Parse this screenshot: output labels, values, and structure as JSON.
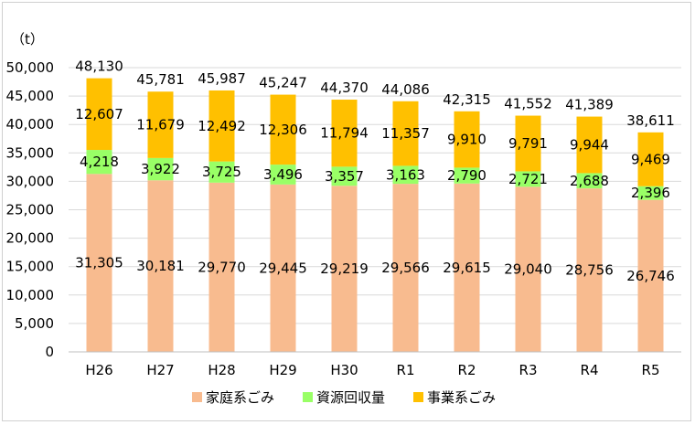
{
  "chart_data": {
    "type": "bar",
    "stacked": true,
    "unit_label": "（t）",
    "categories": [
      "H26",
      "H27",
      "H28",
      "H29",
      "H30",
      "R1",
      "R2",
      "R3",
      "R4",
      "R5"
    ],
    "series": [
      {
        "name": "家庭系ごみ",
        "color": "#F8BB8F",
        "values": [
          31305,
          30181,
          29770,
          29445,
          29219,
          29566,
          29615,
          29040,
          28756,
          26746
        ],
        "labels": [
          "31,305",
          "30,181",
          "29,770",
          "29,445",
          "29,219",
          "29,566",
          "29,615",
          "29,040",
          "28,756",
          "26,746"
        ]
      },
      {
        "name": "資源回収量",
        "color": "#99FF66",
        "values": [
          4218,
          3922,
          3725,
          3496,
          3357,
          3163,
          2790,
          2721,
          2688,
          2396
        ],
        "labels": [
          "4,218",
          "3,922",
          "3,725",
          "3,496",
          "3,357",
          "3,163",
          "2,790",
          "2,721",
          "2,688",
          "2,396"
        ]
      },
      {
        "name": "事業系ごみ",
        "color": "#FFC000",
        "values": [
          12607,
          11679,
          12492,
          12306,
          11794,
          11357,
          9910,
          9791,
          9944,
          9469
        ],
        "labels": [
          "12,607",
          "11,679",
          "12,492",
          "12,306",
          "11,794",
          "11,357",
          "9,910",
          "9,791",
          "9,944",
          "9,469"
        ]
      }
    ],
    "totals": [
      48130,
      45781,
      45987,
      45247,
      44370,
      44086,
      42315,
      41552,
      41389,
      38611
    ],
    "total_labels": [
      "48,130",
      "45,781",
      "45,987",
      "45,247",
      "44,370",
      "44,086",
      "42,315",
      "41,552",
      "41,389",
      "38,611"
    ],
    "ylim": [
      0,
      50000
    ],
    "y_ticks": [
      0,
      5000,
      10000,
      15000,
      20000,
      25000,
      30000,
      35000,
      40000,
      45000,
      50000
    ],
    "y_tick_labels": [
      "0",
      "5,000",
      "10,000",
      "15,000",
      "20,000",
      "25,000",
      "30,000",
      "35,000",
      "40,000",
      "45,000",
      "50,000"
    ],
    "grid": true,
    "legend_position": "bottom"
  }
}
